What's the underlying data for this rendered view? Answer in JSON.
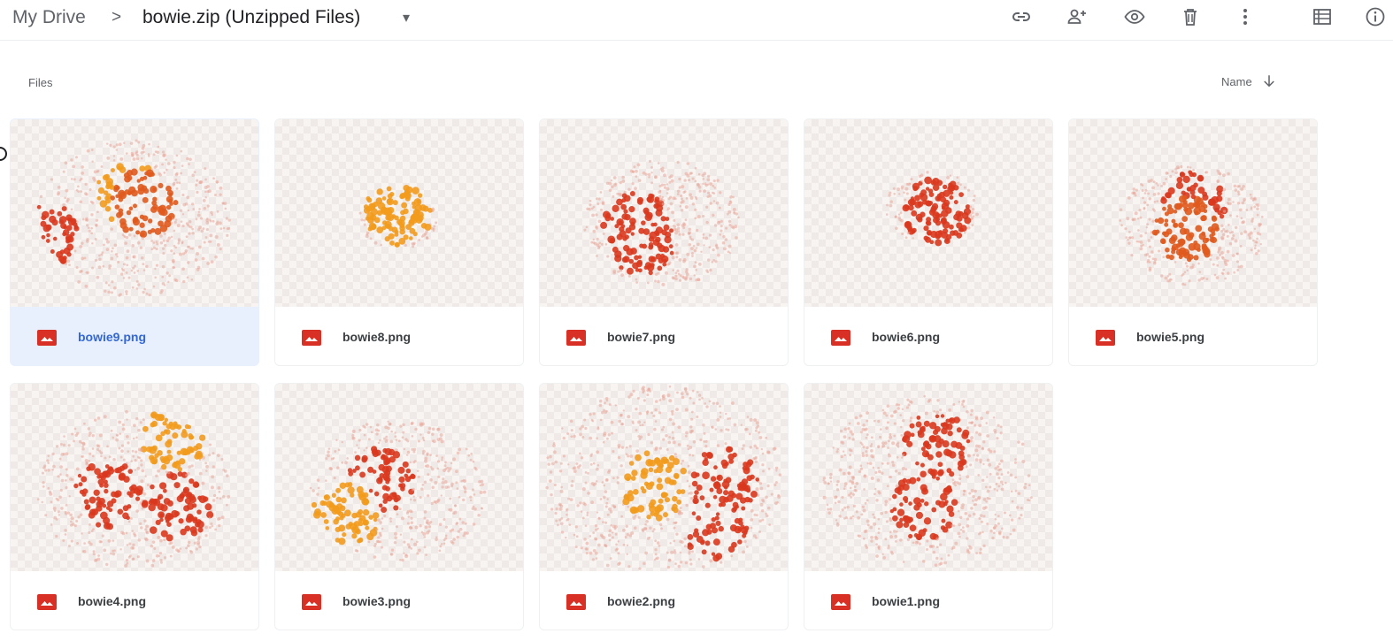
{
  "breadcrumb": {
    "root": "My Drive",
    "separator": ">",
    "current": "bowie.zip (Unzipped Files)",
    "caret": "▾"
  },
  "toolbar": {
    "icons": [
      "link-icon",
      "add-person-icon",
      "preview-eye-icon",
      "trash-icon",
      "more-vert-icon",
      "list-view-icon",
      "info-icon"
    ]
  },
  "files_section": {
    "label": "Files",
    "sort_label": "Name",
    "sort_direction": "descending"
  },
  "files": [
    {
      "name": "bowie9.png",
      "selected": true
    },
    {
      "name": "bowie8.png",
      "selected": false
    },
    {
      "name": "bowie7.png",
      "selected": false
    },
    {
      "name": "bowie6.png",
      "selected": false
    },
    {
      "name": "bowie5.png",
      "selected": false
    },
    {
      "name": "bowie4.png",
      "selected": false
    },
    {
      "name": "bowie3.png",
      "selected": false
    },
    {
      "name": "bowie2.png",
      "selected": false
    },
    {
      "name": "bowie1.png",
      "selected": false
    }
  ],
  "colors": {
    "accent_selected": "#e8f0fe",
    "file_icon": "#d93025",
    "dot_red": "#d9381e",
    "dot_orange": "#f29b1d"
  }
}
